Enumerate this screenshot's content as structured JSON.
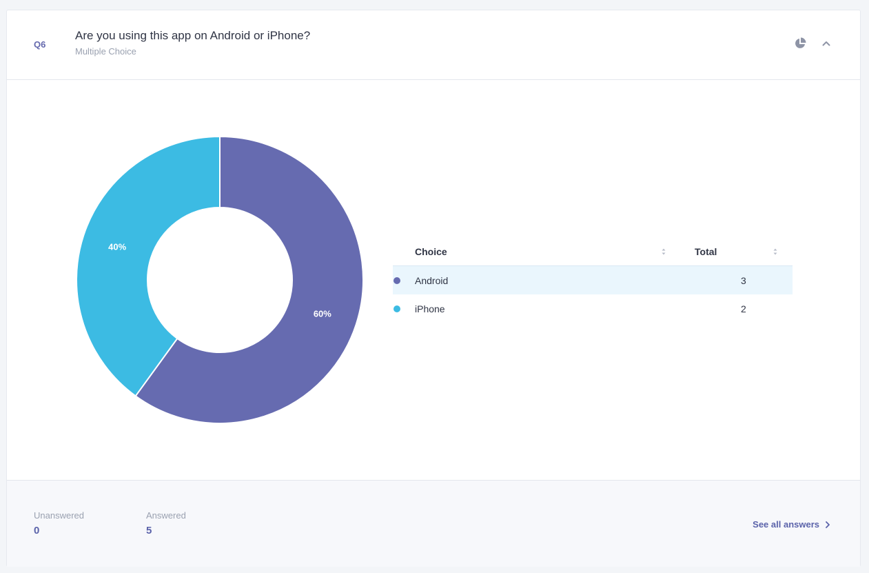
{
  "question": {
    "number": "Q6",
    "title": "Are you using this app on Android or iPhone?",
    "type": "Multiple Choice"
  },
  "header_icons": [
    "pie-chart-icon",
    "chevron-up-icon"
  ],
  "chart_data": {
    "type": "pie",
    "style": "donut",
    "categories": [
      "Android",
      "iPhone"
    ],
    "values": [
      3,
      2
    ],
    "percent_labels": [
      "60%",
      "40%"
    ],
    "colors": [
      "#666bb0",
      "#3cbbe3"
    ]
  },
  "table": {
    "columns": [
      "Choice",
      "Total"
    ],
    "rows": [
      {
        "choice": "Android",
        "total": "3",
        "color": "#666bb0"
      },
      {
        "choice": "iPhone",
        "total": "2",
        "color": "#3cbbe3"
      }
    ]
  },
  "footer": {
    "unanswered_label": "Unanswered",
    "unanswered_value": "0",
    "answered_label": "Answered",
    "answered_value": "5",
    "see_all_label": "See all answers"
  }
}
